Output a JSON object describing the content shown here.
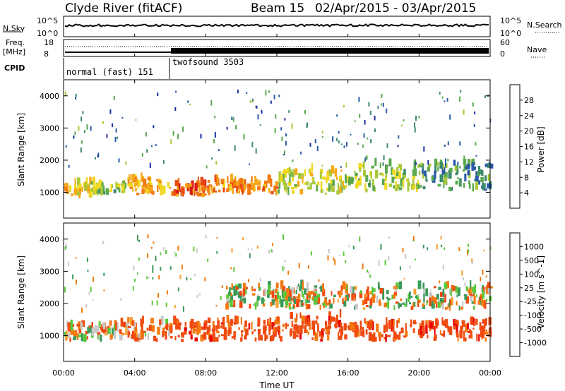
{
  "header": {
    "station": "Clyde River (fitACF)",
    "beam": "Beam 15",
    "date_range": "02/Apr/2015 - 03/Apr/2015"
  },
  "top_panels": {
    "nsky_label": "N.Sky",
    "nsearch_label": "N.Search",
    "nsky_ticks": [
      "10^5",
      "10^0"
    ],
    "nsearch_ticks": [
      "10^5",
      "10^0"
    ],
    "freq_label": "Freq.",
    "freq_unit": "[MHz]",
    "freq_ticks": [
      "18",
      "8"
    ],
    "nave_label": "Nave",
    "nave_ticks": [
      "60",
      "0"
    ],
    "cpid_label": "CPID",
    "cpid_segments": [
      {
        "name": "normal (fast) 151",
        "start_hour": 0,
        "end_hour": 6
      },
      {
        "name": "twofsound 3503",
        "start_hour": 6,
        "end_hour": 24
      }
    ]
  },
  "axes": {
    "y_label": "Slant Range [km]",
    "x_label": "Time UT",
    "x_ticks": [
      "00:00",
      "04:00",
      "08:00",
      "12:00",
      "16:00",
      "20:00",
      "00:00"
    ],
    "y_ticks": [
      "1000",
      "2000",
      "3000",
      "4000"
    ]
  },
  "power_colorbar": {
    "label": "Power [dB]",
    "ticks": [
      "28",
      "24",
      "20",
      "16",
      "12",
      "8",
      "4"
    ],
    "colors": [
      "#0000e8",
      "#1a2e9e",
      "#2a5aa8",
      "#3d8a6a",
      "#5aa84e",
      "#a8c83a",
      "#f0d820",
      "#f4a818",
      "#f47a10",
      "#e84a10",
      "#d81a10",
      "#e80000"
    ]
  },
  "velocity_colorbar": {
    "label": "Velocity [m s^-1]",
    "ticks": [
      "1000",
      "500",
      "100",
      "25",
      "-25",
      "-100",
      "-500",
      "-1000"
    ],
    "colors": [
      "#e80000",
      "#f04a10",
      "#f47a10",
      "#f8a030",
      "#c8c8c8",
      "#5ac83a",
      "#3a9a5a",
      "#2a70a8",
      "#1a3ab0"
    ]
  },
  "chart_data": {
    "type": "heatmap",
    "title": "Clyde River (fitACF) Beam 15 02/Apr/2015 - 03/Apr/2015",
    "xlabel": "Time UT",
    "ylabel": "Slant Range [km]",
    "xlim": [
      0,
      24
    ],
    "ylim": [
      200,
      4500
    ],
    "panels": [
      {
        "name": "Power [dB]",
        "clim": [
          0,
          32
        ],
        "bands": [
          {
            "t": [
              0,
              1.5
            ],
            "r": [
              800,
              1400
            ],
            "value": 18
          },
          {
            "t": [
              1.5,
              3.5
            ],
            "r": [
              900,
              1300
            ],
            "value": 14
          },
          {
            "t": [
              3.5,
              6
            ],
            "r": [
              900,
              1500
            ],
            "value": 20
          },
          {
            "t": [
              6,
              8
            ],
            "r": [
              850,
              1300
            ],
            "value": 24
          },
          {
            "t": [
              8,
              12
            ],
            "r": [
              900,
              1400
            ],
            "value": 22
          },
          {
            "t": [
              12,
              16
            ],
            "r": [
              900,
              1800
            ],
            "value": 16
          },
          {
            "t": [
              16,
              20
            ],
            "r": [
              1000,
              2000
            ],
            "value": 14
          },
          {
            "t": [
              20,
              24
            ],
            "r": [
              1000,
              2000
            ],
            "value": 10
          }
        ]
      },
      {
        "name": "Velocity [m s^-1]",
        "clim": [
          -1000,
          1000
        ],
        "bands": [
          {
            "t": [
              0,
              3
            ],
            "r": [
              800,
              1400
            ],
            "value": -100
          },
          {
            "t": [
              3,
              6
            ],
            "r": [
              800,
              1500
            ],
            "value": -200
          },
          {
            "t": [
              6,
              12
            ],
            "r": [
              800,
              1500
            ],
            "value": -300
          },
          {
            "t": [
              12,
              16
            ],
            "r": [
              800,
              1700
            ],
            "value": -300
          },
          {
            "t": [
              16,
              24
            ],
            "r": [
              800,
              1500
            ],
            "value": -300
          },
          {
            "t": [
              9,
              24
            ],
            "r": [
              1800,
              2600
            ],
            "value": 0
          }
        ]
      }
    ]
  }
}
